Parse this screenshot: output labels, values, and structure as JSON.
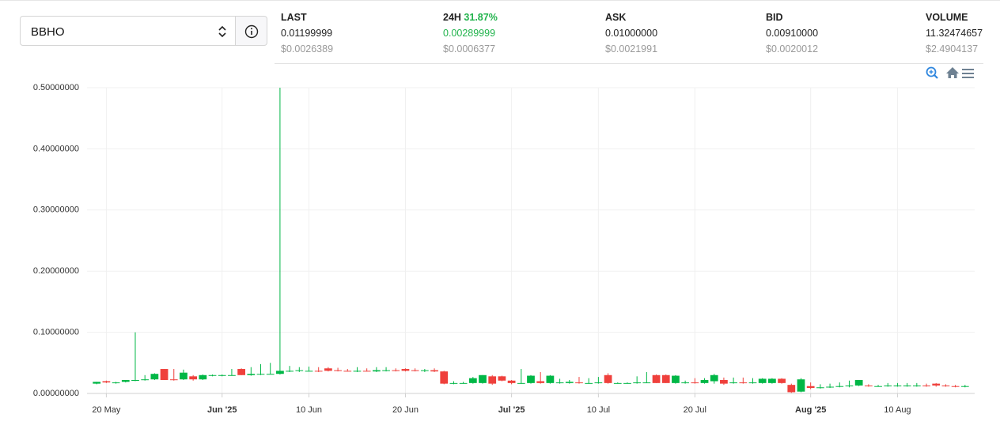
{
  "market": {
    "pair": "BBHO",
    "stats": [
      {
        "label": "LAST",
        "value": "0.01199999",
        "usd": "$0.0026389"
      },
      {
        "label": "24H",
        "change": "31.87%",
        "value": "0.00289999",
        "usd": "$0.0006377"
      },
      {
        "label": "ASK",
        "value": "0.01000000",
        "usd": "$0.0021991"
      },
      {
        "label": "BID",
        "value": "0.00910000",
        "usd": "$0.0020012"
      },
      {
        "label": "VOLUME",
        "value": "11.32474657",
        "usd": "$2.4904137"
      }
    ]
  },
  "chart_data": {
    "type": "candlestick",
    "up_color": "#00b746",
    "down_color": "#ef403c",
    "grid": true,
    "ylim": [
      0,
      0.5
    ],
    "yticks": [
      {
        "value": 0,
        "label": "0.00000000"
      },
      {
        "value": 0.1,
        "label": "0.10000000"
      },
      {
        "value": 0.2,
        "label": "0.20000000"
      },
      {
        "value": 0.3,
        "label": "0.30000000"
      },
      {
        "value": 0.4,
        "label": "0.40000000"
      },
      {
        "value": 0.5,
        "label": "0.50000000"
      }
    ],
    "xlim": [
      "2025-05-18",
      "2025-08-18"
    ],
    "xticks": [
      {
        "value": "2025-05-20",
        "label": "20 May"
      },
      {
        "value": "2025-06-01",
        "label": "Jun '25"
      },
      {
        "value": "2025-06-10",
        "label": "10 Jun"
      },
      {
        "value": "2025-06-20",
        "label": "20 Jun"
      },
      {
        "value": "2025-07-01",
        "label": "Jul '25"
      },
      {
        "value": "2025-07-10",
        "label": "10 Jul"
      },
      {
        "value": "2025-07-20",
        "label": "20 Jul"
      },
      {
        "value": "2025-08-01",
        "label": "Aug '25"
      },
      {
        "value": "2025-08-10",
        "label": "10 Aug"
      }
    ],
    "x": [
      "2025-05-19",
      "2025-05-20",
      "2025-05-21",
      "2025-05-22",
      "2025-05-23",
      "2025-05-24",
      "2025-05-25",
      "2025-05-26",
      "2025-05-27",
      "2025-05-28",
      "2025-05-29",
      "2025-05-30",
      "2025-05-31",
      "2025-06-01",
      "2025-06-02",
      "2025-06-03",
      "2025-06-04",
      "2025-06-05",
      "2025-06-06",
      "2025-06-07",
      "2025-06-08",
      "2025-06-09",
      "2025-06-10",
      "2025-06-11",
      "2025-06-12",
      "2025-06-13",
      "2025-06-14",
      "2025-06-15",
      "2025-06-16",
      "2025-06-17",
      "2025-06-18",
      "2025-06-19",
      "2025-06-20",
      "2025-06-21",
      "2025-06-22",
      "2025-06-23",
      "2025-06-24",
      "2025-06-25",
      "2025-06-26",
      "2025-06-27",
      "2025-06-28",
      "2025-06-29",
      "2025-06-30",
      "2025-07-01",
      "2025-07-02",
      "2025-07-03",
      "2025-07-04",
      "2025-07-05",
      "2025-07-06",
      "2025-07-07",
      "2025-07-08",
      "2025-07-09",
      "2025-07-10",
      "2025-07-11",
      "2025-07-12",
      "2025-07-13",
      "2025-07-14",
      "2025-07-15",
      "2025-07-16",
      "2025-07-17",
      "2025-07-18",
      "2025-07-19",
      "2025-07-20",
      "2025-07-21",
      "2025-07-22",
      "2025-07-23",
      "2025-07-24",
      "2025-07-25",
      "2025-07-26",
      "2025-07-27",
      "2025-07-28",
      "2025-07-29",
      "2025-07-30",
      "2025-07-31",
      "2025-08-01",
      "2025-08-02",
      "2025-08-03",
      "2025-08-04",
      "2025-08-05",
      "2025-08-06",
      "2025-08-07",
      "2025-08-08",
      "2025-08-09",
      "2025-08-10",
      "2025-08-11",
      "2025-08-12",
      "2025-08-13",
      "2025-08-14",
      "2025-08-15",
      "2025-08-16",
      "2025-08-17"
    ],
    "open": [
      0.016,
      0.02,
      0.017,
      0.019,
      0.021,
      0.022,
      0.023,
      0.04,
      0.023,
      0.023,
      0.028,
      0.023,
      0.029,
      0.029,
      0.03,
      0.04,
      0.03,
      0.031,
      0.032,
      0.032,
      0.037,
      0.037,
      0.037,
      0.037,
      0.041,
      0.038,
      0.037,
      0.036,
      0.037,
      0.036,
      0.038,
      0.038,
      0.04,
      0.038,
      0.037,
      0.038,
      0.036,
      0.016,
      0.017,
      0.017,
      0.017,
      0.028,
      0.028,
      0.021,
      0.017,
      0.017,
      0.02,
      0.017,
      0.017,
      0.017,
      0.018,
      0.017,
      0.017,
      0.03,
      0.017,
      0.017,
      0.017,
      0.018,
      0.03,
      0.03,
      0.017,
      0.017,
      0.018,
      0.017,
      0.02,
      0.022,
      0.017,
      0.018,
      0.017,
      0.017,
      0.017,
      0.024,
      0.014,
      0.003,
      0.012,
      0.009,
      0.01,
      0.011,
      0.012,
      0.013,
      0.013,
      0.012,
      0.012,
      0.013,
      0.013,
      0.013,
      0.013,
      0.016,
      0.013,
      0.012,
      0.011
    ],
    "high": [
      0.019,
      0.021,
      0.019,
      0.022,
      0.1,
      0.03,
      0.033,
      0.04,
      0.04,
      0.039,
      0.03,
      0.031,
      0.031,
      0.031,
      0.04,
      0.041,
      0.043,
      0.048,
      0.05,
      0.5,
      0.045,
      0.043,
      0.044,
      0.043,
      0.043,
      0.042,
      0.04,
      0.043,
      0.041,
      0.043,
      0.043,
      0.041,
      0.041,
      0.041,
      0.04,
      0.041,
      0.037,
      0.02,
      0.019,
      0.027,
      0.03,
      0.03,
      0.029,
      0.022,
      0.04,
      0.03,
      0.035,
      0.03,
      0.024,
      0.022,
      0.027,
      0.025,
      0.027,
      0.033,
      0.018,
      0.018,
      0.028,
      0.035,
      0.031,
      0.031,
      0.03,
      0.021,
      0.025,
      0.025,
      0.032,
      0.026,
      0.026,
      0.026,
      0.025,
      0.025,
      0.025,
      0.025,
      0.016,
      0.025,
      0.018,
      0.015,
      0.016,
      0.018,
      0.021,
      0.022,
      0.015,
      0.014,
      0.017,
      0.017,
      0.017,
      0.017,
      0.016,
      0.017,
      0.015,
      0.014,
      0.014
    ],
    "low": [
      0.015,
      0.017,
      0.016,
      0.018,
      0.02,
      0.021,
      0.022,
      0.022,
      0.021,
      0.022,
      0.021,
      0.022,
      0.028,
      0.028,
      0.029,
      0.03,
      0.029,
      0.03,
      0.031,
      0.031,
      0.035,
      0.035,
      0.036,
      0.035,
      0.036,
      0.036,
      0.036,
      0.035,
      0.036,
      0.035,
      0.036,
      0.036,
      0.036,
      0.036,
      0.035,
      0.035,
      0.015,
      0.015,
      0.016,
      0.016,
      0.016,
      0.014,
      0.02,
      0.015,
      0.016,
      0.016,
      0.016,
      0.016,
      0.016,
      0.016,
      0.016,
      0.016,
      0.016,
      0.016,
      0.016,
      0.016,
      0.016,
      0.017,
      0.017,
      0.017,
      0.016,
      0.016,
      0.016,
      0.016,
      0.016,
      0.014,
      0.016,
      0.016,
      0.016,
      0.016,
      0.016,
      0.016,
      0.001,
      0.002,
      0.007,
      0.008,
      0.009,
      0.01,
      0.01,
      0.012,
      0.011,
      0.011,
      0.011,
      0.011,
      0.011,
      0.011,
      0.011,
      0.011,
      0.011,
      0.01,
      0.01
    ],
    "close": [
      0.019,
      0.018,
      0.018,
      0.022,
      0.022,
      0.023,
      0.032,
      0.022,
      0.022,
      0.034,
      0.023,
      0.03,
      0.03,
      0.03,
      0.03,
      0.03,
      0.032,
      0.032,
      0.032,
      0.037,
      0.037,
      0.038,
      0.037,
      0.036,
      0.037,
      0.037,
      0.036,
      0.037,
      0.036,
      0.038,
      0.038,
      0.037,
      0.037,
      0.037,
      0.038,
      0.036,
      0.016,
      0.017,
      0.017,
      0.025,
      0.03,
      0.016,
      0.021,
      0.017,
      0.017,
      0.029,
      0.017,
      0.029,
      0.018,
      0.019,
      0.017,
      0.017,
      0.018,
      0.017,
      0.017,
      0.017,
      0.018,
      0.018,
      0.017,
      0.017,
      0.029,
      0.018,
      0.017,
      0.022,
      0.03,
      0.016,
      0.018,
      0.017,
      0.018,
      0.024,
      0.024,
      0.017,
      0.002,
      0.023,
      0.009,
      0.01,
      0.011,
      0.012,
      0.013,
      0.022,
      0.012,
      0.012,
      0.013,
      0.013,
      0.013,
      0.013,
      0.012,
      0.013,
      0.012,
      0.011,
      0.012
    ]
  }
}
